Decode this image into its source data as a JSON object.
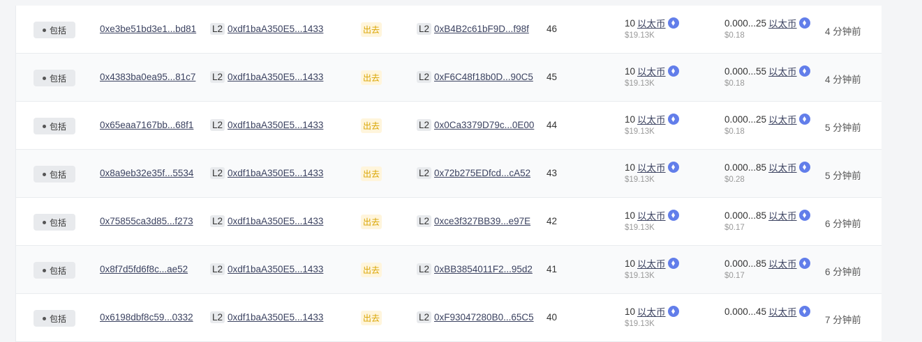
{
  "colors": {
    "accent": "#627eea",
    "direction": "#d9a400"
  },
  "rows": [
    {
      "status": "包括",
      "hash": "0xe3be51bd3e1...bd81",
      "from_layer": "L2",
      "from": "0xdf1baA350E5...1433",
      "direction": "出去",
      "to_layer": "L2",
      "to": "0xB4B2c61bF9D...f98f",
      "block": "46",
      "value": "10",
      "value_unit": "以太币",
      "value_usd": "$19.13K",
      "fee": "0.000...25",
      "fee_unit": "以太币",
      "fee_usd": "$0.18",
      "age": "4 分钟前"
    },
    {
      "status": "包括",
      "hash": "0x4383ba0ea95...81c7",
      "from_layer": "L2",
      "from": "0xdf1baA350E5...1433",
      "direction": "出去",
      "to_layer": "L2",
      "to": "0xF6C48f18b0D...90C5",
      "block": "45",
      "value": "10",
      "value_unit": "以太币",
      "value_usd": "$19.13K",
      "fee": "0.000...55",
      "fee_unit": "以太币",
      "fee_usd": "$0.18",
      "age": "4 分钟前"
    },
    {
      "status": "包括",
      "hash": "0x65eaa7167bb...68f1",
      "from_layer": "L2",
      "from": "0xdf1baA350E5...1433",
      "direction": "出去",
      "to_layer": "L2",
      "to": "0x0Ca3379D79c...0E00",
      "block": "44",
      "value": "10",
      "value_unit": "以太币",
      "value_usd": "$19.13K",
      "fee": "0.000...25",
      "fee_unit": "以太币",
      "fee_usd": "$0.18",
      "age": "5 分钟前"
    },
    {
      "status": "包括",
      "hash": "0x8a9eb32e35f...5534",
      "from_layer": "L2",
      "from": "0xdf1baA350E5...1433",
      "direction": "出去",
      "to_layer": "L2",
      "to": "0x72b275EDfcd...cA52",
      "block": "43",
      "value": "10",
      "value_unit": "以太币",
      "value_usd": "$19.13K",
      "fee": "0.000...85",
      "fee_unit": "以太币",
      "fee_usd": "$0.28",
      "age": "5 分钟前"
    },
    {
      "status": "包括",
      "hash": "0x75855ca3d85...f273",
      "from_layer": "L2",
      "from": "0xdf1baA350E5...1433",
      "direction": "出去",
      "to_layer": "L2",
      "to": "0xce3f327BB39...e97E",
      "block": "42",
      "value": "10",
      "value_unit": "以太币",
      "value_usd": "$19.13K",
      "fee": "0.000...85",
      "fee_unit": "以太币",
      "fee_usd": "$0.17",
      "age": "6 分钟前"
    },
    {
      "status": "包括",
      "hash": "0x8f7d5fd6f8c...ae52",
      "from_layer": "L2",
      "from": "0xdf1baA350E5...1433",
      "direction": "出去",
      "to_layer": "L2",
      "to": "0xBB3854011F2...95d2",
      "block": "41",
      "value": "10",
      "value_unit": "以太币",
      "value_usd": "$19.13K",
      "fee": "0.000...85",
      "fee_unit": "以太币",
      "fee_usd": "$0.17",
      "age": "6 分钟前"
    },
    {
      "status": "包括",
      "hash": "0x6198dbf8c59...0332",
      "from_layer": "L2",
      "from": "0xdf1baA350E5...1433",
      "direction": "出去",
      "to_layer": "L2",
      "to": "0xF93047280B0...65C5",
      "block": "40",
      "value": "10",
      "value_unit": "以太币",
      "value_usd": "$19.13K",
      "fee": "0.000...45",
      "fee_unit": "以太币",
      "fee_usd": "",
      "age": "7 分钟前"
    }
  ]
}
